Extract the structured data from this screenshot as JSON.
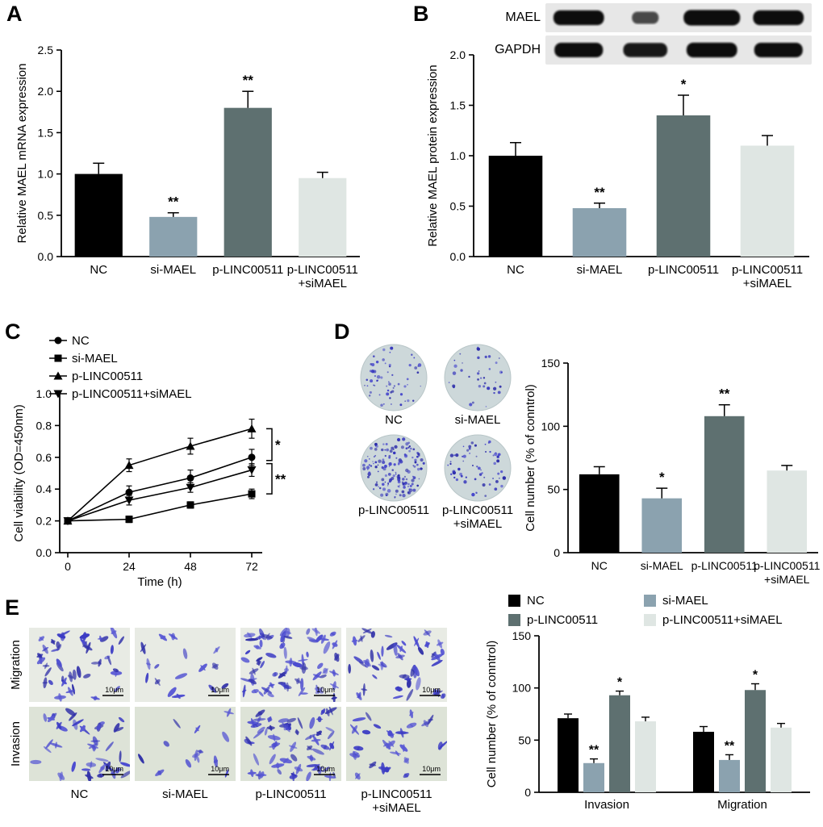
{
  "figure": {
    "panel_labels": [
      "A",
      "B",
      "C",
      "D",
      "E"
    ]
  },
  "colors": {
    "nc": "#000000",
    "si_mael": "#8ba2af",
    "p_linc": "#5e7070",
    "p_linc_si": "#dfe6e3",
    "stain": "#3c3cc8",
    "colony_bg": "#cdd8da",
    "migration_bg": "#e8ebe4",
    "invasion_bg": "#dde3d7",
    "blot_bg": "#e7e7e7"
  },
  "blot": {
    "labels": [
      "MAEL",
      "GAPDH"
    ],
    "lane_intensities": [
      [
        1.05,
        0.5,
        1.2,
        1.05
      ],
      [
        1.0,
        0.9,
        1.05,
        1.0
      ]
    ]
  },
  "colony": {
    "labels": [
      "NC",
      "si-MAEL",
      "p-LINC00511",
      "p-LINC00511\n+siMAEL"
    ],
    "counts": [
      60,
      38,
      150,
      62
    ]
  },
  "transwell": {
    "row_labels": [
      "Migration",
      "Invasion"
    ],
    "col_labels": [
      "NC",
      "si-MAEL",
      "p-LINC00511",
      "p-LINC00511\n+siMAEL"
    ],
    "scale_bar_label": "10μm",
    "cell_counts": {
      "migration": [
        44,
        16,
        65,
        46
      ],
      "invasion": [
        40,
        13,
        58,
        30
      ]
    }
  },
  "chart_data": [
    {
      "panel": "A",
      "type": "bar",
      "ylabel": "Relative MAEL mRNA expression",
      "categories": [
        "NC",
        "si-MAEL",
        "p-LINC00511",
        "p-LINC00511\n+siMAEL"
      ],
      "values": [
        1.0,
        0.48,
        1.8,
        0.95
      ],
      "errors": [
        0.13,
        0.05,
        0.2,
        0.07
      ],
      "significance": [
        "",
        "**",
        "**",
        ""
      ],
      "ylim": [
        0,
        2.5
      ],
      "yticks": [
        "0.0",
        "0.5",
        "1.0",
        "1.5",
        "2.0",
        "2.5"
      ],
      "bar_colors": [
        "#000000",
        "#8ba2af",
        "#5e7070",
        "#dfe6e3"
      ]
    },
    {
      "panel": "B",
      "type": "bar",
      "ylabel": "Relative MAEL protein expression",
      "categories": [
        "NC",
        "si-MAEL",
        "p-LINC00511",
        "p-LINC00511\n+siMAEL"
      ],
      "values": [
        1.0,
        0.48,
        1.4,
        1.1
      ],
      "errors": [
        0.13,
        0.05,
        0.2,
        0.1
      ],
      "significance": [
        "",
        "**",
        "*",
        ""
      ],
      "ylim": [
        0,
        2.0
      ],
      "yticks": [
        "0.0",
        "0.5",
        "1.0",
        "1.5",
        "2.0"
      ],
      "bar_colors": [
        "#000000",
        "#8ba2af",
        "#5e7070",
        "#dfe6e3"
      ]
    },
    {
      "panel": "C",
      "type": "line",
      "xlabel": "Time (h)",
      "ylabel": "Cell viability (OD=450nm)",
      "x": [
        0,
        24,
        48,
        72
      ],
      "xticks": [
        "0",
        "24",
        "48",
        "72"
      ],
      "series": [
        {
          "name": "NC",
          "marker": "circle",
          "values": [
            0.2,
            0.38,
            0.47,
            0.6
          ],
          "errors": [
            0,
            0.04,
            0.05,
            0.05
          ]
        },
        {
          "name": "si-MAEL",
          "marker": "square",
          "values": [
            0.2,
            0.21,
            0.3,
            0.37
          ],
          "errors": [
            0,
            0.02,
            0.02,
            0.03
          ]
        },
        {
          "name": "p-LINC00511",
          "marker": "triangle-up",
          "values": [
            0.2,
            0.55,
            0.67,
            0.78
          ],
          "errors": [
            0,
            0.04,
            0.05,
            0.06
          ]
        },
        {
          "name": "p-LINC00511+siMAEL",
          "marker": "triangle-down",
          "values": [
            0.2,
            0.33,
            0.41,
            0.52
          ],
          "errors": [
            0,
            0.03,
            0.03,
            0.04
          ]
        }
      ],
      "ylim": [
        0,
        1.0
      ],
      "yticks": [
        "0.0",
        "0.2",
        "0.4",
        "0.6",
        "0.8",
        "1.0"
      ],
      "sig_brackets": [
        {
          "y_top": 0.78,
          "y_bottom": 0.58,
          "label": "*"
        },
        {
          "y_top": 0.56,
          "y_bottom": 0.37,
          "label": "**"
        }
      ],
      "legend_position": "top-left"
    },
    {
      "panel": "D",
      "type": "bar",
      "ylabel": "Cell number (% of conntrol)",
      "categories": [
        "NC",
        "si-MAEL",
        "p-LINC00511",
        "p-LINC00511\n+siMAEL"
      ],
      "values": [
        62,
        43,
        108,
        65
      ],
      "errors": [
        6,
        8,
        9,
        4
      ],
      "significance": [
        "",
        "*",
        "**",
        ""
      ],
      "ylim": [
        0,
        150
      ],
      "yticks": [
        "0",
        "50",
        "100",
        "150"
      ],
      "bar_colors": [
        "#000000",
        "#8ba2af",
        "#5e7070",
        "#dfe6e3"
      ]
    },
    {
      "panel": "E",
      "type": "grouped-bar",
      "ylabel": "Cell number (% of conntrol)",
      "categories": [
        "Invasion",
        "Migration"
      ],
      "series": [
        {
          "name": "NC",
          "values": [
            71,
            58
          ],
          "errors": [
            4,
            5
          ],
          "sig": [
            "",
            ""
          ]
        },
        {
          "name": "si-MAEL",
          "values": [
            28,
            31
          ],
          "errors": [
            4,
            5
          ],
          "sig": [
            "**",
            "**"
          ]
        },
        {
          "name": "p-LINC00511",
          "values": [
            93,
            98
          ],
          "errors": [
            4,
            6
          ],
          "sig": [
            "*",
            "*"
          ]
        },
        {
          "name": "p-LINC00511+siMAEL",
          "values": [
            68,
            62
          ],
          "errors": [
            4,
            4
          ],
          "sig": [
            "",
            ""
          ]
        }
      ],
      "ylim": [
        0,
        150
      ],
      "yticks": [
        "0",
        "50",
        "100",
        "150"
      ],
      "bar_colors": [
        "#000000",
        "#8ba2af",
        "#5e7070",
        "#dfe6e3"
      ],
      "legend_position": "top"
    }
  ]
}
